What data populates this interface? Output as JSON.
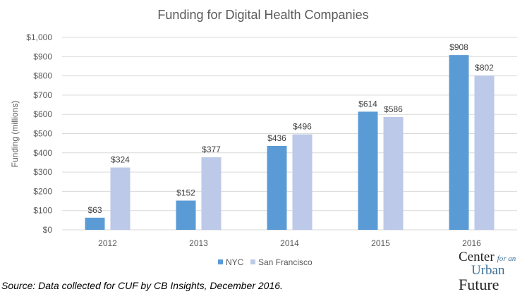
{
  "chart_data": {
    "type": "bar",
    "title": "Funding for Digital Health Companies",
    "xlabel": "",
    "ylabel": "Funding  (millions)",
    "ylim": [
      0,
      1000
    ],
    "yticks": [
      0,
      100,
      200,
      300,
      400,
      500,
      600,
      700,
      800,
      900,
      1000
    ],
    "ytick_labels": [
      "$0",
      "$100",
      "$200",
      "$300",
      "$400",
      "$500",
      "$600",
      "$700",
      "$800",
      "$900",
      "$1,000"
    ],
    "categories": [
      "2012",
      "2013",
      "2014",
      "2015",
      "2016"
    ],
    "series": [
      {
        "name": "NYC",
        "color": "#5b9bd5",
        "values": [
          63,
          152,
          436,
          614,
          908
        ],
        "labels": [
          "$63",
          "$152",
          "$436",
          "$614",
          "$908"
        ]
      },
      {
        "name": "San Francisco",
        "color": "#bdc9e8",
        "values": [
          324,
          377,
          496,
          586,
          802
        ],
        "labels": [
          "$324",
          "$377",
          "$496",
          "$586",
          "$802"
        ]
      }
    ],
    "grid": true,
    "legend": "bottom"
  },
  "source": "Source: Data collected for CUF by CB Insights, December 2016.",
  "logo": {
    "center": "Center",
    "for_an": "for an",
    "urban": "Urban",
    "future": "Future"
  }
}
